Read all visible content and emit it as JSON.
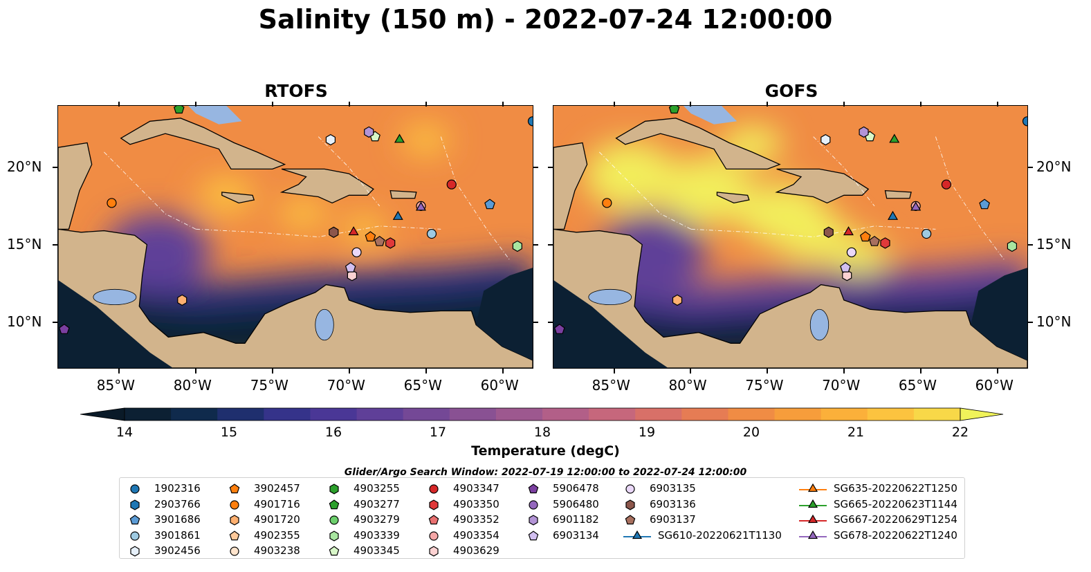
{
  "title": "Salinity (150 m) - 2022-07-24 12:00:00",
  "panels": [
    {
      "title": "RTOFS"
    },
    {
      "title": "GOFS"
    }
  ],
  "axes": {
    "x_ticks": [
      "85°W",
      "80°W",
      "75°W",
      "70°W",
      "65°W",
      "60°W"
    ],
    "y_ticks": [
      "20°N",
      "15°N",
      "10°N"
    ],
    "lon_range": [
      -89,
      -58
    ],
    "lat_range": [
      7,
      24
    ]
  },
  "colorbar": {
    "label": "Temperature (degC)",
    "ticks": [
      "14",
      "15",
      "16",
      "17",
      "18",
      "19",
      "20",
      "21",
      "22"
    ],
    "colors": [
      "#0c2033",
      "#0f2a4c",
      "#1f2f6e",
      "#35338a",
      "#4a3796",
      "#5f3f98",
      "#744896",
      "#895193",
      "#9d588f",
      "#b25f88",
      "#c6677c",
      "#d87068",
      "#e67c54",
      "#f08c44",
      "#f79d3b",
      "#fbb03a",
      "#fcc33f",
      "#f8d848"
    ],
    "extend_low": "#0a1a28",
    "extend_high": "#f0f35a"
  },
  "legend": {
    "title": "Glider/Argo Search Window: 2022-07-19 12:00:00 to 2022-07-24 12:00:00",
    "items": [
      {
        "label": "1902316",
        "marker": "circle",
        "color": "#1f77b4",
        "col": 0,
        "row": 0
      },
      {
        "label": "2903766",
        "marker": "hexagon",
        "color": "#1f77b4",
        "col": 0,
        "row": 1
      },
      {
        "label": "3901686",
        "marker": "pentagon",
        "color": "#5b9bd5",
        "col": 0,
        "row": 2
      },
      {
        "label": "3901861",
        "marker": "circle",
        "color": "#9ecae1",
        "col": 0,
        "row": 3
      },
      {
        "label": "3902456",
        "marker": "hexagon",
        "color": "#e6f0fa",
        "col": 0,
        "row": 4
      },
      {
        "label": "3902457",
        "marker": "pentagon",
        "color": "#ff7f0e",
        "col": 1,
        "row": 0
      },
      {
        "label": "4901716",
        "marker": "circle",
        "color": "#ff7f0e",
        "col": 1,
        "row": 1
      },
      {
        "label": "4901720",
        "marker": "hexagon",
        "color": "#ffb070",
        "col": 1,
        "row": 2
      },
      {
        "label": "4902355",
        "marker": "pentagon",
        "color": "#ffc99a",
        "col": 1,
        "row": 3
      },
      {
        "label": "4903238",
        "marker": "circle",
        "color": "#ffe4cc",
        "col": 1,
        "row": 4
      },
      {
        "label": "4903255",
        "marker": "hexagon",
        "color": "#2ca02c",
        "col": 2,
        "row": 0
      },
      {
        "label": "4903277",
        "marker": "pentagon",
        "color": "#2ca02c",
        "col": 2,
        "row": 1
      },
      {
        "label": "4903279",
        "marker": "circle",
        "color": "#6ccf6c",
        "col": 2,
        "row": 2
      },
      {
        "label": "4903339",
        "marker": "hexagon",
        "color": "#a8e6a0",
        "col": 2,
        "row": 3
      },
      {
        "label": "4903345",
        "marker": "pentagon",
        "color": "#d8f7c8",
        "col": 2,
        "row": 4
      },
      {
        "label": "4903347",
        "marker": "circle",
        "color": "#d62728",
        "col": 3,
        "row": 0
      },
      {
        "label": "4903350",
        "marker": "hexagon",
        "color": "#e0393a",
        "col": 3,
        "row": 1
      },
      {
        "label": "4903352",
        "marker": "pentagon",
        "color": "#e87070",
        "col": 3,
        "row": 2
      },
      {
        "label": "4903354",
        "marker": "circle",
        "color": "#f4a6a6",
        "col": 3,
        "row": 3
      },
      {
        "label": "4903629",
        "marker": "hexagon",
        "color": "#fcd2d2",
        "col": 3,
        "row": 4
      },
      {
        "label": "5906478",
        "marker": "pentagon",
        "color": "#7b3fa0",
        "col": 4,
        "row": 0
      },
      {
        "label": "5906480",
        "marker": "circle",
        "color": "#9467bd",
        "col": 4,
        "row": 1
      },
      {
        "label": "6901182",
        "marker": "hexagon",
        "color": "#b394d6",
        "col": 4,
        "row": 2
      },
      {
        "label": "6903134",
        "marker": "pentagon",
        "color": "#d2bff0",
        "col": 4,
        "row": 3
      },
      {
        "label": "6903135",
        "marker": "circle",
        "color": "#ead8f8",
        "col": 5,
        "row": 0
      },
      {
        "label": "6903136",
        "marker": "hexagon",
        "color": "#8c564b",
        "col": 5,
        "row": 1
      },
      {
        "label": "6903137",
        "marker": "pentagon",
        "color": "#a8705f",
        "col": 5,
        "row": 2
      },
      {
        "label": "SG610-20220621T1130",
        "marker": "triangle-line",
        "color": "#1f77b4",
        "col": 5,
        "row": 3
      },
      {
        "label": "SG635-20220622T1250",
        "marker": "triangle-line",
        "color": "#ff7f0e",
        "col": 6,
        "row": 0
      },
      {
        "label": "SG665-20220623T1144",
        "marker": "triangle-line",
        "color": "#2ca02c",
        "col": 6,
        "row": 1
      },
      {
        "label": "SG667-20220629T1254",
        "marker": "triangle-line",
        "color": "#d62728",
        "col": 6,
        "row": 2
      },
      {
        "label": "SG678-20220622T1240",
        "marker": "triangle-line",
        "color": "#9467bd",
        "col": 6,
        "row": 3
      }
    ]
  },
  "observations": [
    {
      "id": "1902316",
      "lon": -58.0,
      "lat": 23.0
    },
    {
      "id": "3901686",
      "lon": -60.8,
      "lat": 17.6
    },
    {
      "id": "3901861",
      "lon": -64.6,
      "lat": 15.7
    },
    {
      "id": "3902456",
      "lon": -71.2,
      "lat": 21.8
    },
    {
      "id": "3902457",
      "lon": -68.6,
      "lat": 15.5
    },
    {
      "id": "4901716",
      "lon": -85.5,
      "lat": 17.7
    },
    {
      "id": "4901720",
      "lon": -80.9,
      "lat": 11.4
    },
    {
      "id": "4903277",
      "lon": -81.1,
      "lat": 23.8
    },
    {
      "id": "4903339",
      "lon": -59.0,
      "lat": 14.9
    },
    {
      "id": "4903345",
      "lon": -68.3,
      "lat": 22.0
    },
    {
      "id": "4903347",
      "lon": -63.3,
      "lat": 18.9
    },
    {
      "id": "4903350",
      "lon": -67.3,
      "lat": 15.1
    },
    {
      "id": "4903354",
      "lon": -65.3,
      "lat": 17.5
    },
    {
      "id": "4903629",
      "lon": -69.8,
      "lat": 13.0
    },
    {
      "id": "5906478",
      "lon": -88.6,
      "lat": 9.5
    },
    {
      "id": "6903134",
      "lon": -69.9,
      "lat": 13.5
    },
    {
      "id": "6903135",
      "lon": -69.5,
      "lat": 14.5
    },
    {
      "id": "6903136",
      "lon": -71.0,
      "lat": 15.8
    },
    {
      "id": "6903137",
      "lon": -68.0,
      "lat": 15.2
    },
    {
      "id": "6901182",
      "lon": -68.7,
      "lat": 22.3
    },
    {
      "id": "SG610-20220621T1130",
      "lon": -66.8,
      "lat": 16.8
    },
    {
      "id": "SG665-20220623T1144",
      "lon": -66.7,
      "lat": 21.8
    },
    {
      "id": "SG667-20220629T1254",
      "lon": -69.7,
      "lat": 15.8
    },
    {
      "id": "SG678-20220622T1240",
      "lon": -65.3,
      "lat": 17.4
    }
  ]
}
